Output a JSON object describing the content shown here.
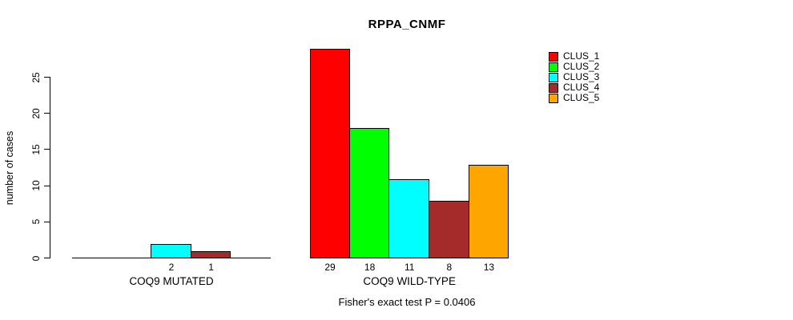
{
  "chart_data": {
    "type": "bar",
    "title": "RPPA_CNMF",
    "ylabel": "number of cases",
    "ylim": [
      0,
      25
    ],
    "yticks": [
      0,
      5,
      10,
      15,
      20,
      25
    ],
    "grid": false,
    "series": [
      {
        "name": "CLUS_1",
        "color": "#FF0000"
      },
      {
        "name": "CLUS_2",
        "color": "#00FF00"
      },
      {
        "name": "CLUS_3",
        "color": "#00FFFF"
      },
      {
        "name": "CLUS_4",
        "color": "#A52A2A"
      },
      {
        "name": "CLUS_5",
        "color": "#FFA500"
      }
    ],
    "groups": [
      {
        "label": "COQ9 MUTATED",
        "values": [
          0,
          0,
          2,
          1,
          0
        ],
        "bar_labels": [
          "",
          "",
          "2",
          "1",
          ""
        ]
      },
      {
        "label": "COQ9 WILD-TYPE",
        "values": [
          29,
          18,
          11,
          8,
          13
        ],
        "bar_labels": [
          "29",
          "18",
          "11",
          "8",
          "13"
        ]
      }
    ],
    "legend": {
      "position": "top-right",
      "entries": [
        "CLUS_1",
        "CLUS_2",
        "CLUS_3",
        "CLUS_4",
        "CLUS_5"
      ]
    },
    "footnote": "Fisher's exact test P = 0.0406"
  }
}
